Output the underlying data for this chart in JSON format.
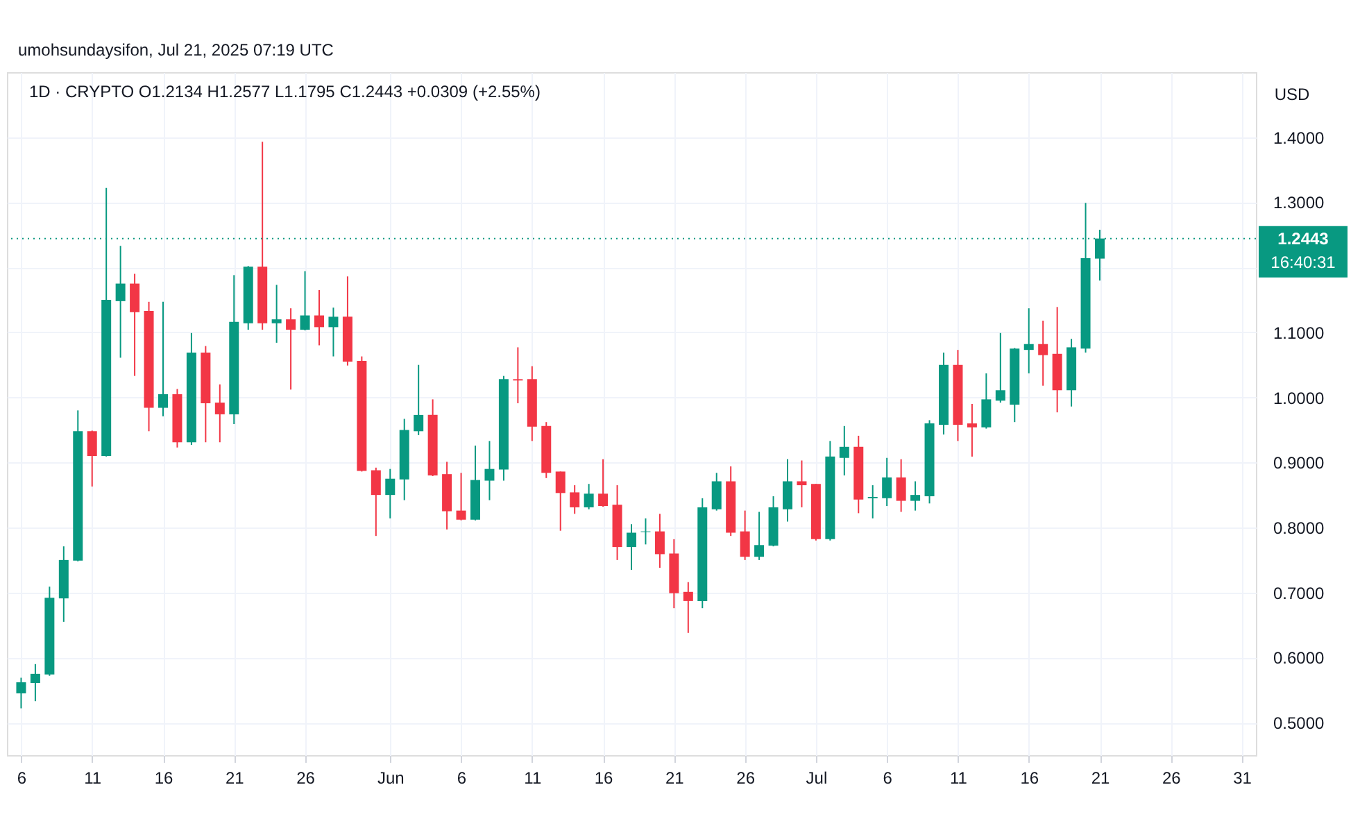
{
  "chart_data": {
    "type": "candlestick",
    "title": "1D · CRYPTO  O1.2134  H1.2577  L1.1795  C1.2443  +0.0309 (+2.55%)",
    "ylabel": "USD",
    "annotations": [
      "umohsundaysifon, Jul 21, 2025 07:19 UTC",
      "16:40:31"
    ],
    "x": [
      "2025-05-06",
      "2025-05-07",
      "2025-05-08",
      "2025-05-09",
      "2025-05-10",
      "2025-05-11",
      "2025-05-12",
      "2025-05-13",
      "2025-05-14",
      "2025-05-15",
      "2025-05-16",
      "2025-05-17",
      "2025-05-18",
      "2025-05-19",
      "2025-05-20",
      "2025-05-21",
      "2025-05-22",
      "2025-05-23",
      "2025-05-24",
      "2025-05-25",
      "2025-05-26",
      "2025-05-27",
      "2025-05-28",
      "2025-05-29",
      "2025-05-30",
      "2025-05-31",
      "2025-06-01",
      "2025-06-02",
      "2025-06-03",
      "2025-06-04",
      "2025-06-05",
      "2025-06-06",
      "2025-06-07",
      "2025-06-08",
      "2025-06-09",
      "2025-06-10",
      "2025-06-11",
      "2025-06-12",
      "2025-06-13",
      "2025-06-14",
      "2025-06-15",
      "2025-06-16",
      "2025-06-17",
      "2025-06-18",
      "2025-06-19",
      "2025-06-20",
      "2025-06-21",
      "2025-06-22",
      "2025-06-23",
      "2025-06-24",
      "2025-06-25",
      "2025-06-26",
      "2025-06-27",
      "2025-06-28",
      "2025-06-29",
      "2025-06-30",
      "2025-07-01",
      "2025-07-02",
      "2025-07-03",
      "2025-07-04",
      "2025-07-05",
      "2025-07-06",
      "2025-07-07",
      "2025-07-08",
      "2025-07-09",
      "2025-07-10",
      "2025-07-11",
      "2025-07-12",
      "2025-07-13",
      "2025-07-14",
      "2025-07-15",
      "2025-07-16",
      "2025-07-17",
      "2025-07-18",
      "2025-07-19",
      "2025-07-20",
      "2025-07-21"
    ],
    "ohlc": [
      [
        0.545,
        0.569,
        0.522,
        0.562
      ],
      [
        0.561,
        0.59,
        0.533,
        0.575
      ],
      [
        0.574,
        0.709,
        0.572,
        0.692
      ],
      [
        0.691,
        0.771,
        0.655,
        0.75
      ],
      [
        0.749,
        0.98,
        0.748,
        0.948
      ],
      [
        0.948,
        0.949,
        0.863,
        0.91
      ],
      [
        0.91,
        1.322,
        0.909,
        1.15
      ],
      [
        1.148,
        1.233,
        1.061,
        1.175
      ],
      [
        1.175,
        1.19,
        1.033,
        1.131
      ],
      [
        1.133,
        1.147,
        0.948,
        0.984
      ],
      [
        0.984,
        1.147,
        0.971,
        1.005
      ],
      [
        1.005,
        1.013,
        0.923,
        0.931
      ],
      [
        0.931,
        1.099,
        0.927,
        1.069
      ],
      [
        1.069,
        1.079,
        0.931,
        0.991
      ],
      [
        0.992,
        1.02,
        0.931,
        0.974
      ],
      [
        0.974,
        1.188,
        0.959,
        1.116
      ],
      [
        1.114,
        1.202,
        1.104,
        1.201
      ],
      [
        1.201,
        1.393,
        1.104,
        1.114
      ],
      [
        1.114,
        1.173,
        1.084,
        1.12
      ],
      [
        1.12,
        1.137,
        1.012,
        1.104
      ],
      [
        1.104,
        1.194,
        1.103,
        1.126
      ],
      [
        1.126,
        1.165,
        1.08,
        1.108
      ],
      [
        1.108,
        1.138,
        1.063,
        1.124
      ],
      [
        1.124,
        1.186,
        1.049,
        1.055
      ],
      [
        1.056,
        1.063,
        0.886,
        0.887
      ],
      [
        0.888,
        0.892,
        0.787,
        0.85
      ],
      [
        0.85,
        0.89,
        0.814,
        0.875
      ],
      [
        0.874,
        0.967,
        0.842,
        0.95
      ],
      [
        0.948,
        1.05,
        0.942,
        0.973
      ],
      [
        0.973,
        0.997,
        0.879,
        0.88
      ],
      [
        0.882,
        0.901,
        0.797,
        0.825
      ],
      [
        0.826,
        0.884,
        0.811,
        0.812
      ],
      [
        0.812,
        0.926,
        0.811,
        0.873
      ],
      [
        0.872,
        0.933,
        0.842,
        0.89
      ],
      [
        0.889,
        1.033,
        0.872,
        1.028
      ],
      [
        1.028,
        1.077,
        0.991,
        1.026
      ],
      [
        1.028,
        1.048,
        0.933,
        0.955
      ],
      [
        0.956,
        0.962,
        0.876,
        0.884
      ],
      [
        0.886,
        0.886,
        0.795,
        0.853
      ],
      [
        0.854,
        0.865,
        0.821,
        0.831
      ],
      [
        0.831,
        0.867,
        0.828,
        0.852
      ],
      [
        0.852,
        0.905,
        0.832,
        0.833
      ],
      [
        0.835,
        0.865,
        0.75,
        0.77
      ],
      [
        0.77,
        0.805,
        0.735,
        0.792
      ],
      [
        0.793,
        0.814,
        0.774,
        0.794
      ],
      [
        0.794,
        0.821,
        0.738,
        0.759
      ],
      [
        0.76,
        0.782,
        0.676,
        0.699
      ],
      [
        0.701,
        0.716,
        0.638,
        0.687
      ],
      [
        0.687,
        0.845,
        0.676,
        0.831
      ],
      [
        0.828,
        0.884,
        0.826,
        0.871
      ],
      [
        0.871,
        0.894,
        0.787,
        0.792
      ],
      [
        0.794,
        0.826,
        0.75,
        0.755
      ],
      [
        0.755,
        0.824,
        0.75,
        0.773
      ],
      [
        0.772,
        0.848,
        0.771,
        0.831
      ],
      [
        0.828,
        0.905,
        0.809,
        0.871
      ],
      [
        0.871,
        0.903,
        0.831,
        0.865
      ],
      [
        0.867,
        0.867,
        0.78,
        0.782
      ],
      [
        0.782,
        0.933,
        0.78,
        0.909
      ],
      [
        0.907,
        0.956,
        0.88,
        0.924
      ],
      [
        0.924,
        0.941,
        0.822,
        0.843
      ],
      [
        0.845,
        0.865,
        0.814,
        0.847
      ],
      [
        0.845,
        0.907,
        0.833,
        0.877
      ],
      [
        0.877,
        0.905,
        0.824,
        0.841
      ],
      [
        0.841,
        0.871,
        0.826,
        0.85
      ],
      [
        0.848,
        0.965,
        0.837,
        0.96
      ],
      [
        0.958,
        1.069,
        0.943,
        1.05
      ],
      [
        1.05,
        1.073,
        0.933,
        0.958
      ],
      [
        0.96,
        0.99,
        0.909,
        0.954
      ],
      [
        0.954,
        1.037,
        0.952,
        0.997
      ],
      [
        0.995,
        1.099,
        0.992,
        1.011
      ],
      [
        0.989,
        1.076,
        0.962,
        1.075
      ],
      [
        1.073,
        1.137,
        1.037,
        1.082
      ],
      [
        1.082,
        1.118,
        1.018,
        1.065
      ],
      [
        1.067,
        1.139,
        0.977,
        1.011
      ],
      [
        1.011,
        1.09,
        0.986,
        1.077
      ],
      [
        1.075,
        1.299,
        1.069,
        1.214
      ],
      [
        1.2134,
        1.2577,
        1.1795,
        1.2443
      ]
    ],
    "colors": [
      "#089981",
      "#089981",
      "#089981",
      "#089981",
      "#089981",
      "#f23645",
      "#089981",
      "#089981",
      "#f23645",
      "#f23645",
      "#089981",
      "#f23645",
      "#089981",
      "#f23645",
      "#f23645",
      "#089981",
      "#089981",
      "#f23645",
      "#089981",
      "#f23645",
      "#089981",
      "#f23645",
      "#089981",
      "#f23645",
      "#f23645",
      "#f23645",
      "#089981",
      "#089981",
      "#089981",
      "#f23645",
      "#f23645",
      "#f23645",
      "#089981",
      "#089981",
      "#089981",
      "#f23645",
      "#f23645",
      "#f23645",
      "#f23645",
      "#f23645",
      "#089981",
      "#f23645",
      "#f23645",
      "#089981",
      "#089981",
      "#f23645",
      "#f23645",
      "#f23645",
      "#089981",
      "#089981",
      "#f23645",
      "#f23645",
      "#089981",
      "#089981",
      "#089981",
      "#f23645",
      "#f23645",
      "#089981",
      "#089981",
      "#f23645",
      "#089981",
      "#089981",
      "#f23645",
      "#089981",
      "#089981",
      "#089981",
      "#f23645",
      "#f23645",
      "#089981",
      "#089981",
      "#089981",
      "#089981",
      "#f23645",
      "#f23645",
      "#089981",
      "#089981",
      "#089981"
    ],
    "xlim": [
      "2025-05-05",
      "2025-08-01"
    ],
    "xticks": [
      {
        "value": "2025-05-06",
        "label": "6"
      },
      {
        "value": "2025-05-11",
        "label": "11"
      },
      {
        "value": "2025-05-16",
        "label": "16"
      },
      {
        "value": "2025-05-21",
        "label": "21"
      },
      {
        "value": "2025-05-26",
        "label": "26"
      },
      {
        "value": "2025-06-01",
        "label": "Jun"
      },
      {
        "value": "2025-06-06",
        "label": "6"
      },
      {
        "value": "2025-06-11",
        "label": "11"
      },
      {
        "value": "2025-06-16",
        "label": "16"
      },
      {
        "value": "2025-06-21",
        "label": "21"
      },
      {
        "value": "2025-06-26",
        "label": "26"
      },
      {
        "value": "2025-07-01",
        "label": "Jul"
      },
      {
        "value": "2025-07-06",
        "label": "6"
      },
      {
        "value": "2025-07-11",
        "label": "11"
      },
      {
        "value": "2025-07-16",
        "label": "16"
      },
      {
        "value": "2025-07-21",
        "label": "21"
      },
      {
        "value": "2025-07-26",
        "label": "26"
      },
      {
        "value": "2025-07-31",
        "label": "31"
      }
    ],
    "ylim": [
      0.45,
      1.5
    ],
    "yticks": [
      {
        "value": 0.5,
        "label": "0.5000"
      },
      {
        "value": 0.6,
        "label": "0.6000"
      },
      {
        "value": 0.7,
        "label": "0.7000"
      },
      {
        "value": 0.8,
        "label": "0.8000"
      },
      {
        "value": 0.9,
        "label": "0.9000"
      },
      {
        "value": 1.0,
        "label": "1.0000"
      },
      {
        "value": 1.1,
        "label": "1.1000"
      },
      {
        "value": 1.2,
        "label": null
      },
      {
        "value": 1.3,
        "label": "1.3000"
      },
      {
        "value": 1.4,
        "label": "1.4000"
      }
    ],
    "ref_lines": [
      {
        "axis": "y",
        "value": 1.2443,
        "label": "1.2443",
        "color": "#089981",
        "line_style": "dotted"
      }
    ],
    "grid": true
  }
}
